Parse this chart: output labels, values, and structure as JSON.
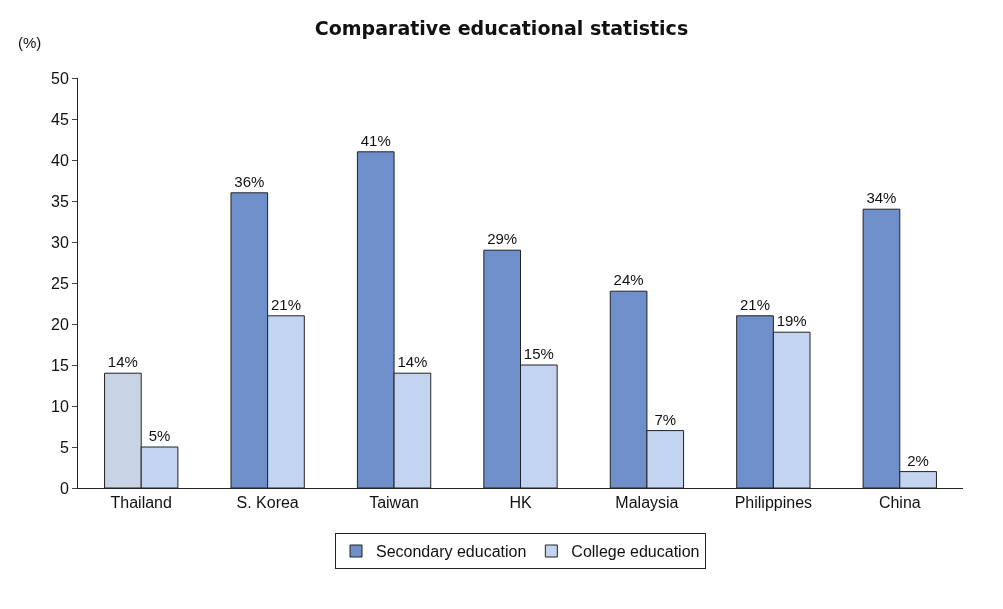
{
  "chart_data": {
    "type": "bar",
    "title": "Comparative educational statistics",
    "ylabel": "(%)",
    "categories": [
      "Thailand",
      "S. Korea",
      "Taiwan",
      "HK",
      "Malaysia",
      "Philippines",
      "China"
    ],
    "series": [
      {
        "name": "Secondary education",
        "color": "#6f8fcb",
        "colors": [
          "#c8d3e6",
          "#6f8fcb",
          "#6f8fcb",
          "#6f8fcb",
          "#6f8fcb",
          "#6f8fcb",
          "#6f8fcb"
        ],
        "values": [
          14,
          36,
          41,
          29,
          24,
          21,
          34
        ],
        "value_labels": [
          "14%",
          "36%",
          "41%",
          "29%",
          "24%",
          "21%",
          "34%"
        ]
      },
      {
        "name": "College education",
        "color": "#c3d4f0",
        "values": [
          5,
          21,
          14,
          15,
          7,
          19,
          2
        ],
        "value_labels": [
          "5%",
          "21%",
          "14%",
          "15%",
          "7%",
          "19%",
          "2%"
        ]
      }
    ],
    "ylim": [
      0,
      50
    ],
    "yticks": [
      0,
      5,
      10,
      15,
      20,
      25,
      30,
      35,
      40,
      45,
      50
    ],
    "legend": "bottom"
  }
}
